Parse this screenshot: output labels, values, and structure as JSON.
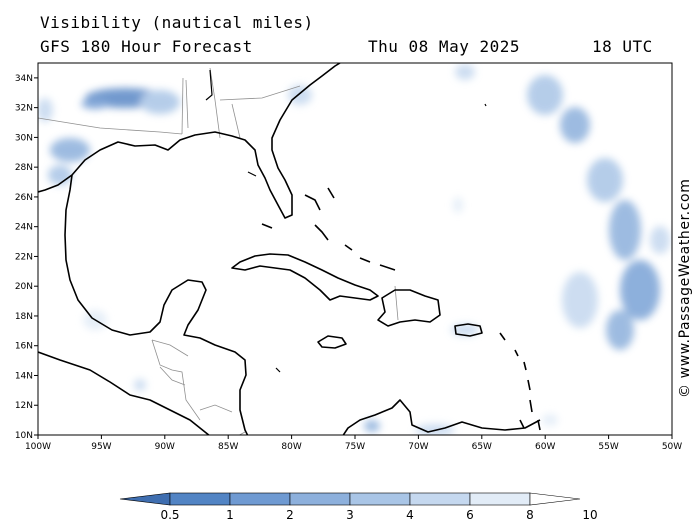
{
  "title": {
    "line1": "Visibility (nautical miles)",
    "line2": "GFS 180 Hour Forecast",
    "date": "Thu 08 May 2025",
    "time": "18 UTC"
  },
  "credit": "© www.PassageWeather.com",
  "map": {
    "lon_range": [
      -100,
      -50
    ],
    "lat_range": [
      10,
      35
    ],
    "lon_ticks": [
      "100W",
      "95W",
      "90W",
      "85W",
      "80W",
      "75W",
      "70W",
      "65W",
      "60W",
      "55W",
      "50W"
    ],
    "lat_ticks": [
      "10N",
      "12N",
      "14N",
      "16N",
      "18N",
      "20N",
      "22N",
      "24N",
      "26N",
      "28N",
      "30N",
      "32N",
      "34N"
    ],
    "coast_color": "#000000",
    "border_color": "#909090"
  },
  "colorbar": {
    "labels": [
      "0.5",
      "1",
      "2",
      "3",
      "4",
      "6",
      "8",
      "10"
    ],
    "colors": [
      "#3f6eb0",
      "#5284c4",
      "#6f9ad2",
      "#8db0dc",
      "#a9c5e6",
      "#c5d8ef",
      "#e2ecf7",
      "#ffffff"
    ]
  }
}
